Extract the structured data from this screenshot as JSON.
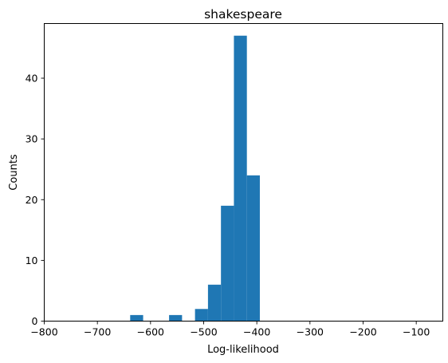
{
  "chart_data": {
    "type": "bar",
    "title": "shakespeare",
    "xlabel": "Log-likelihood",
    "ylabel": "Counts",
    "xlim": [
      -800,
      -50
    ],
    "ylim": [
      0,
      49
    ],
    "xticks": [
      -800,
      -700,
      -600,
      -500,
      -400,
      -300,
      -200,
      -100
    ],
    "xtick_labels": [
      "−800",
      "−700",
      "−600",
      "−500",
      "−400",
      "−300",
      "−200",
      "−100"
    ],
    "yticks": [
      0,
      10,
      20,
      30,
      40
    ],
    "ytick_labels": [
      "0",
      "10",
      "20",
      "30",
      "40"
    ],
    "bin_width": 24.4,
    "bins": [
      {
        "x0": -638.3,
        "count": 1
      },
      {
        "x0": -565.1,
        "count": 1
      },
      {
        "x0": -516.3,
        "count": 2
      },
      {
        "x0": -491.9,
        "count": 6
      },
      {
        "x0": -467.5,
        "count": 19
      },
      {
        "x0": -443.1,
        "count": 47
      },
      {
        "x0": -418.7,
        "count": 24
      }
    ],
    "bar_color": "#1f77b4",
    "grid": false,
    "legend": "none"
  }
}
